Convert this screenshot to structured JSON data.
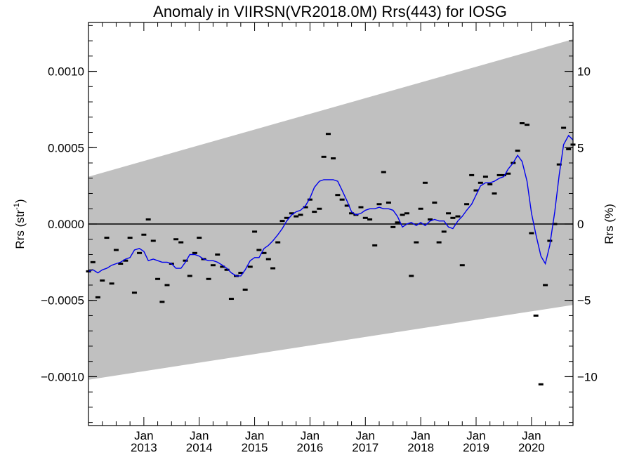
{
  "chart_data": {
    "type": "scatter",
    "title": "Anomaly in VIIRSN(VR2018.0M) Rrs(443) for IOSG",
    "ylabel_left": {
      "prefix": "Rrs (str",
      "sup": "-1",
      "suffix": ")"
    },
    "ylabel_right": "Rrs (%)",
    "xlim": [
      2012.0,
      2020.75
    ],
    "ylim_left": [
      -0.00132,
      0.00132
    ],
    "ylim_right": [
      -13.2,
      13.2
    ],
    "grid": false,
    "zero_line": 0,
    "left_ticks": [
      {
        "value": 0.001,
        "label": "0.0010"
      },
      {
        "value": 0.0005,
        "label": "0.0005"
      },
      {
        "value": 0.0,
        "label": "0.0000"
      },
      {
        "value": -0.0005,
        "label": "−0.0005"
      },
      {
        "value": -0.001,
        "label": "−0.0010"
      }
    ],
    "right_ticks": [
      {
        "value": 10,
        "label": "10"
      },
      {
        "value": 5,
        "label": "5"
      },
      {
        "value": 0,
        "label": "0"
      },
      {
        "value": -5,
        "label": "−5"
      },
      {
        "value": -10,
        "label": "−10"
      }
    ],
    "x_ticks": [
      {
        "value": 2013.0,
        "month": "Jan",
        "year": "2013"
      },
      {
        "value": 2014.0,
        "month": "Jan",
        "year": "2014"
      },
      {
        "value": 2015.0,
        "month": "Jan",
        "year": "2015"
      },
      {
        "value": 2016.0,
        "month": "Jan",
        "year": "2016"
      },
      {
        "value": 2017.0,
        "month": "Jan",
        "year": "2017"
      },
      {
        "value": 2018.0,
        "month": "Jan",
        "year": "2018"
      },
      {
        "value": 2019.0,
        "month": "Jan",
        "year": "2019"
      },
      {
        "value": 2020.0,
        "month": "Jan",
        "year": "2020"
      }
    ],
    "band": {
      "color": "#c0c0c0",
      "upper": [
        [
          2012.0,
          0.00031
        ],
        [
          2020.75,
          0.00121
        ]
      ],
      "lower": [
        [
          2012.0,
          -0.00102
        ],
        [
          2020.75,
          -0.00053
        ]
      ]
    },
    "points": [
      [
        2012.0,
        -0.00031
      ],
      [
        2012.08,
        -0.00025
      ],
      [
        2012.17,
        -0.00048
      ],
      [
        2012.25,
        -0.00037
      ],
      [
        2012.33,
        -9e-05
      ],
      [
        2012.42,
        -0.00039
      ],
      [
        2012.5,
        -0.00017
      ],
      [
        2012.58,
        -0.00026
      ],
      [
        2012.67,
        -0.00024
      ],
      [
        2012.75,
        -9e-05
      ],
      [
        2012.83,
        -0.00045
      ],
      [
        2012.92,
        -0.00019
      ],
      [
        2013.0,
        -7e-05
      ],
      [
        2013.08,
        3e-05
      ],
      [
        2013.17,
        -0.00011
      ],
      [
        2013.25,
        -0.00036
      ],
      [
        2013.33,
        -0.00051
      ],
      [
        2013.42,
        -0.0004
      ],
      [
        2013.5,
        -0.00026
      ],
      [
        2013.58,
        -0.0001
      ],
      [
        2013.67,
        -0.00012
      ],
      [
        2013.75,
        -0.00024
      ],
      [
        2013.83,
        -0.00034
      ],
      [
        2013.92,
        -0.00019
      ],
      [
        2014.0,
        -9e-05
      ],
      [
        2014.08,
        -0.00023
      ],
      [
        2014.17,
        -0.00036
      ],
      [
        2014.25,
        -0.00027
      ],
      [
        2014.33,
        -0.0002
      ],
      [
        2014.42,
        -0.00028
      ],
      [
        2014.5,
        -0.0003
      ],
      [
        2014.58,
        -0.00049
      ],
      [
        2014.67,
        -0.00034
      ],
      [
        2014.75,
        -0.00032
      ],
      [
        2014.83,
        -0.00043
      ],
      [
        2014.92,
        -0.00028
      ],
      [
        2015.0,
        -5e-05
      ],
      [
        2015.08,
        -0.00017
      ],
      [
        2015.17,
        -0.00019
      ],
      [
        2015.25,
        -0.00023
      ],
      [
        2015.33,
        -0.00029
      ],
      [
        2015.42,
        -0.00012
      ],
      [
        2015.5,
        2e-05
      ],
      [
        2015.58,
        4e-05
      ],
      [
        2015.67,
        7e-05
      ],
      [
        2015.75,
        5e-05
      ],
      [
        2015.83,
        6e-05
      ],
      [
        2015.92,
        0.00011
      ],
      [
        2016.0,
        0.00016
      ],
      [
        2016.08,
        8e-05
      ],
      [
        2016.17,
        0.0001
      ],
      [
        2016.25,
        0.00044
      ],
      [
        2016.33,
        0.00059
      ],
      [
        2016.42,
        0.00043
      ],
      [
        2016.5,
        0.00019
      ],
      [
        2016.58,
        0.00016
      ],
      [
        2016.67,
        0.00012
      ],
      [
        2016.75,
        7e-05
      ],
      [
        2016.83,
        6e-05
      ],
      [
        2016.92,
        0.00011
      ],
      [
        2017.0,
        4e-05
      ],
      [
        2017.08,
        3e-05
      ],
      [
        2017.17,
        -0.00014
      ],
      [
        2017.25,
        0.00013
      ],
      [
        2017.33,
        0.00034
      ],
      [
        2017.42,
        0.00014
      ],
      [
        2017.5,
        -2e-05
      ],
      [
        2017.58,
        1e-05
      ],
      [
        2017.67,
        6e-05
      ],
      [
        2017.75,
        7e-05
      ],
      [
        2017.83,
        -0.00034
      ],
      [
        2017.92,
        -0.00012
      ],
      [
        2018.0,
        0.0001
      ],
      [
        2018.08,
        0.00027
      ],
      [
        2018.17,
        3e-05
      ],
      [
        2018.25,
        0.00014
      ],
      [
        2018.33,
        -0.00012
      ],
      [
        2018.42,
        -5e-05
      ],
      [
        2018.5,
        7e-05
      ],
      [
        2018.58,
        4e-05
      ],
      [
        2018.67,
        5e-05
      ],
      [
        2018.75,
        -0.00027
      ],
      [
        2018.83,
        0.00013
      ],
      [
        2018.92,
        0.00032
      ],
      [
        2019.0,
        0.00022
      ],
      [
        2019.08,
        0.00027
      ],
      [
        2019.17,
        0.00031
      ],
      [
        2019.25,
        0.00026
      ],
      [
        2019.33,
        0.0002
      ],
      [
        2019.42,
        0.00032
      ],
      [
        2019.5,
        0.00032
      ],
      [
        2019.58,
        0.00033
      ],
      [
        2019.67,
        0.0004
      ],
      [
        2019.75,
        0.00048
      ],
      [
        2019.83,
        0.00066
      ],
      [
        2019.92,
        0.00065
      ],
      [
        2020.0,
        -6e-05
      ],
      [
        2020.08,
        -0.0006
      ],
      [
        2020.17,
        -0.00105
      ],
      [
        2020.25,
        -0.0004
      ],
      [
        2020.33,
        -0.00011
      ],
      [
        2020.42,
        0.0
      ],
      [
        2020.5,
        0.00039
      ],
      [
        2020.58,
        0.00063
      ],
      [
        2020.67,
        0.00049
      ],
      [
        2020.75,
        0.00052
      ]
    ],
    "smooth_line": {
      "color": "#0000ee",
      "points": [
        [
          2012.0,
          -0.00031
        ],
        [
          2012.08,
          -0.0003
        ],
        [
          2012.17,
          -0.00032
        ],
        [
          2012.25,
          -0.0003
        ],
        [
          2012.33,
          -0.00029
        ],
        [
          2012.42,
          -0.00027
        ],
        [
          2012.5,
          -0.00026
        ],
        [
          2012.58,
          -0.00025
        ],
        [
          2012.67,
          -0.00023
        ],
        [
          2012.75,
          -0.00022
        ],
        [
          2012.83,
          -0.00017
        ],
        [
          2012.92,
          -0.00016
        ],
        [
          2013.0,
          -0.00018
        ],
        [
          2013.08,
          -0.00024
        ],
        [
          2013.17,
          -0.00023
        ],
        [
          2013.25,
          -0.00024
        ],
        [
          2013.33,
          -0.00025
        ],
        [
          2013.42,
          -0.00025
        ],
        [
          2013.5,
          -0.00026
        ],
        [
          2013.58,
          -0.00029
        ],
        [
          2013.67,
          -0.00029
        ],
        [
          2013.75,
          -0.00025
        ],
        [
          2013.83,
          -0.0002
        ],
        [
          2013.92,
          -0.0002
        ],
        [
          2014.0,
          -0.00021
        ],
        [
          2014.08,
          -0.00023
        ],
        [
          2014.17,
          -0.00024
        ],
        [
          2014.25,
          -0.00024
        ],
        [
          2014.33,
          -0.00025
        ],
        [
          2014.42,
          -0.00027
        ],
        [
          2014.5,
          -0.00029
        ],
        [
          2014.58,
          -0.00032
        ],
        [
          2014.67,
          -0.00034
        ],
        [
          2014.75,
          -0.00034
        ],
        [
          2014.83,
          -0.0003
        ],
        [
          2014.92,
          -0.00024
        ],
        [
          2015.0,
          -0.00022
        ],
        [
          2015.08,
          -0.00022
        ],
        [
          2015.17,
          -0.00016
        ],
        [
          2015.25,
          -0.00014
        ],
        [
          2015.33,
          -0.00011
        ],
        [
          2015.42,
          -7e-05
        ],
        [
          2015.5,
          -3e-05
        ],
        [
          2015.58,
          2e-05
        ],
        [
          2015.67,
          6e-05
        ],
        [
          2015.75,
          8e-05
        ],
        [
          2015.83,
          9e-05
        ],
        [
          2015.92,
          0.00012
        ],
        [
          2016.0,
          0.00017
        ],
        [
          2016.08,
          0.00024
        ],
        [
          2016.17,
          0.00028
        ],
        [
          2016.25,
          0.00029
        ],
        [
          2016.33,
          0.00029
        ],
        [
          2016.42,
          0.00029
        ],
        [
          2016.5,
          0.00028
        ],
        [
          2016.58,
          0.00022
        ],
        [
          2016.67,
          0.00015
        ],
        [
          2016.75,
          8e-05
        ],
        [
          2016.83,
          6e-05
        ],
        [
          2016.92,
          7e-05
        ],
        [
          2017.0,
          9e-05
        ],
        [
          2017.08,
          0.0001
        ],
        [
          2017.17,
          0.0001
        ],
        [
          2017.25,
          0.00011
        ],
        [
          2017.33,
          0.0001
        ],
        [
          2017.42,
          0.0001
        ],
        [
          2017.5,
          9e-05
        ],
        [
          2017.58,
          5e-05
        ],
        [
          2017.67,
          -2e-05
        ],
        [
          2017.75,
          0.0
        ],
        [
          2017.83,
          1e-05
        ],
        [
          2017.92,
          -1e-05
        ],
        [
          2018.0,
          1e-05
        ],
        [
          2018.08,
          -1e-05
        ],
        [
          2018.17,
          2e-05
        ],
        [
          2018.25,
          3e-05
        ],
        [
          2018.33,
          2e-05
        ],
        [
          2018.42,
          2e-05
        ],
        [
          2018.5,
          -2e-05
        ],
        [
          2018.58,
          -3e-05
        ],
        [
          2018.67,
          2e-05
        ],
        [
          2018.75,
          5e-05
        ],
        [
          2018.83,
          9e-05
        ],
        [
          2018.92,
          0.00013
        ],
        [
          2019.0,
          0.00019
        ],
        [
          2019.08,
          0.00025
        ],
        [
          2019.17,
          0.00027
        ],
        [
          2019.25,
          0.00027
        ],
        [
          2019.33,
          0.00028
        ],
        [
          2019.42,
          0.0003
        ],
        [
          2019.5,
          0.00031
        ],
        [
          2019.58,
          0.00036
        ],
        [
          2019.67,
          0.0004
        ],
        [
          2019.75,
          0.00045
        ],
        [
          2019.83,
          0.00041
        ],
        [
          2019.92,
          0.00028
        ],
        [
          2020.0,
          7e-05
        ],
        [
          2020.08,
          -7e-05
        ],
        [
          2020.17,
          -0.00021
        ],
        [
          2020.25,
          -0.00026
        ],
        [
          2020.33,
          -0.00014
        ],
        [
          2020.42,
          8e-05
        ],
        [
          2020.5,
          0.00032
        ],
        [
          2020.58,
          0.00052
        ],
        [
          2020.67,
          0.00058
        ],
        [
          2020.75,
          0.00055
        ]
      ]
    }
  }
}
